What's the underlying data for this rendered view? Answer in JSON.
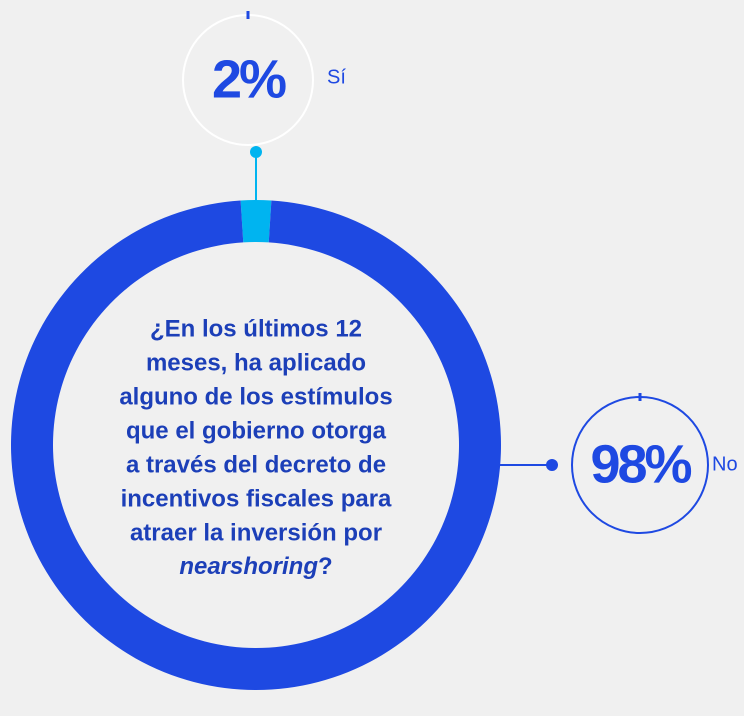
{
  "chart_data": {
    "type": "pie",
    "categories": [
      "Sí",
      "No"
    ],
    "values": [
      2,
      98
    ],
    "value_labels": [
      "2%",
      "98%"
    ],
    "colors": [
      "#00b4f0",
      "#1e49e2"
    ],
    "center_lines": [
      "¿En los últimos 12",
      "meses, ha aplicado",
      "alguno de los estímulos",
      "que el gobierno otorga",
      "a través del decreto de",
      "incentivos fiscales para",
      "atraer la inversión por"
    ],
    "center_emphasis": "nearshoring",
    "center_end": "?"
  }
}
